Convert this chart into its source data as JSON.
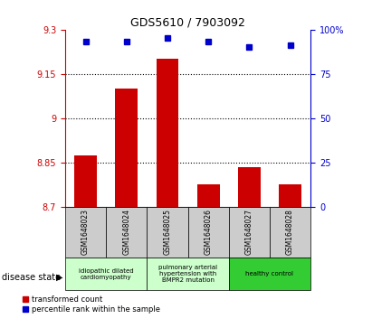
{
  "title": "GDS5610 / 7903092",
  "samples": [
    "GSM1648023",
    "GSM1648024",
    "GSM1648025",
    "GSM1648026",
    "GSM1648027",
    "GSM1648028"
  ],
  "bar_values": [
    8.875,
    9.1,
    9.2,
    8.775,
    8.835,
    8.775
  ],
  "percentile_values": [
    93,
    93,
    95,
    93,
    90,
    91
  ],
  "ylim_left": [
    8.7,
    9.3
  ],
  "ylim_right": [
    0,
    100
  ],
  "yticks_left": [
    8.7,
    8.85,
    9.0,
    9.15,
    9.3
  ],
  "ytick_labels_left": [
    "8.7",
    "8.85",
    "9",
    "9.15",
    "9.3"
  ],
  "yticks_right": [
    0,
    25,
    50,
    75,
    100
  ],
  "ytick_labels_right": [
    "0",
    "25",
    "50",
    "75",
    "100%"
  ],
  "hlines": [
    8.85,
    9.0,
    9.15
  ],
  "bar_color": "#cc0000",
  "percentile_color": "#0000cc",
  "bg_color_plot": "#ffffff",
  "group_configs": [
    [
      0,
      2,
      "idiopathic dilated\ncardiomyopathy",
      "#ccffcc"
    ],
    [
      2,
      4,
      "pulmonary arterial\nhypertension with\nBMPR2 mutation",
      "#ccffcc"
    ],
    [
      4,
      6,
      "healthy control",
      "#33cc33"
    ]
  ],
  "legend_items": [
    {
      "label": "transformed count",
      "color": "#cc0000"
    },
    {
      "label": "percentile rank within the sample",
      "color": "#0000cc"
    }
  ],
  "tick_label_color": "#cc0000",
  "right_tick_color": "#0000cc"
}
